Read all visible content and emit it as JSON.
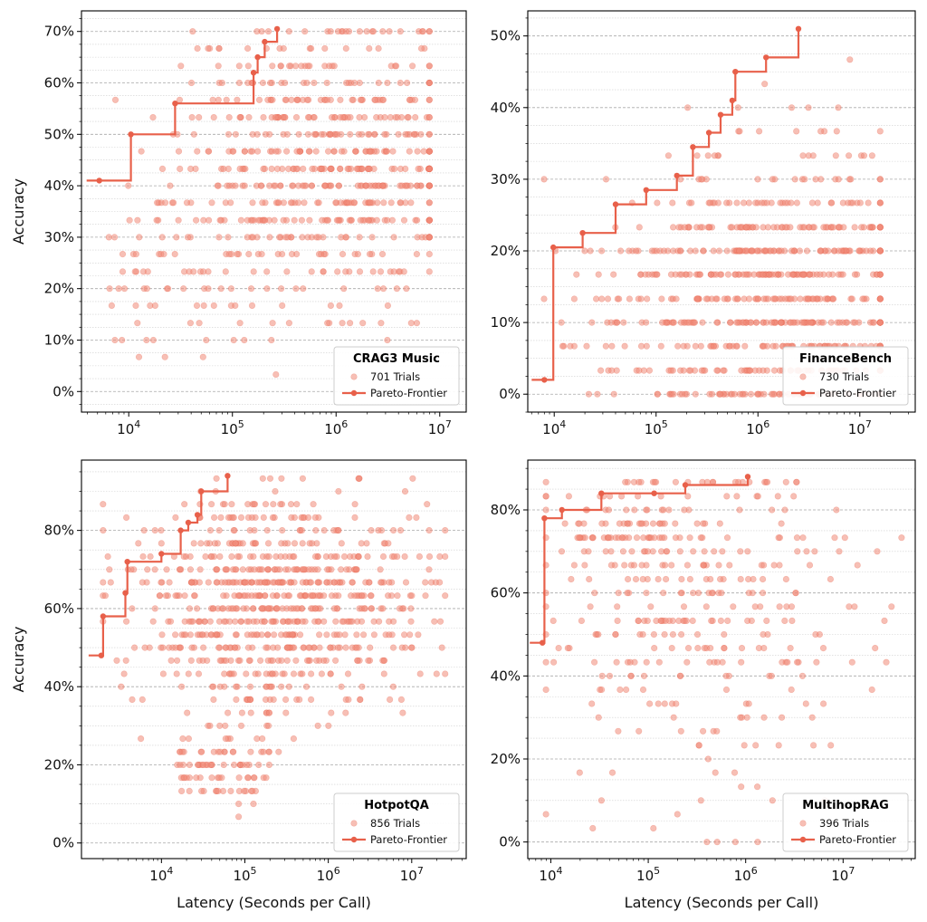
{
  "figure": {
    "ylabel": "Accuracy",
    "xlabel": "Latency (Seconds per Call)"
  },
  "colors": {
    "scatter": "#f08b78",
    "frontier": "#e8604a",
    "grid": "#b8b8b8",
    "axis": "#000000"
  },
  "chart_data": [
    {
      "type": "scatter",
      "title": "CRAG3 Music",
      "trials_label": "701 Trials",
      "frontier_label": "Pareto-Frontier",
      "xscale": "log",
      "xlim": [
        3500.0,
        18000000.0
      ],
      "ylim": [
        -4,
        74
      ],
      "xticks": [
        {
          "v": 10000.0,
          "exp": "4"
        },
        {
          "v": 100000.0,
          "exp": "5"
        },
        {
          "v": 1000000.0,
          "exp": "6"
        },
        {
          "v": 10000000.0,
          "exp": "7"
        }
      ],
      "yticks": [
        0,
        10,
        20,
        30,
        40,
        50,
        60,
        70
      ],
      "xlabel": "",
      "ylabel": "Accuracy",
      "legend": "bottom-right",
      "trials": 701,
      "y_levels": [
        0,
        3.3,
        6.7,
        10,
        13.3,
        16.7,
        20,
        23.3,
        26.7,
        30,
        33.3,
        36.7,
        40,
        43.3,
        46.7,
        50,
        53.3,
        56.7,
        60,
        63.3,
        66.7,
        70
      ],
      "cloud": {
        "lx0": 3.8,
        "lx1": 6.9,
        "center": 5.9,
        "spread": 0.72,
        "weight_center": 45,
        "weight_spread": 14,
        "seed": 11
      },
      "sparse_low": {
        "lx0": 3.8,
        "lx1": 5.2,
        "ycenter": 20,
        "yspread": 9,
        "n": 60,
        "seed": 5
      },
      "frontier": [
        [
          5200,
          41
        ],
        [
          10500,
          50
        ],
        [
          28000,
          56
        ],
        [
          160000,
          62
        ],
        [
          175000,
          65
        ],
        [
          205000,
          68
        ],
        [
          270000,
          70.5
        ]
      ]
    },
    {
      "type": "scatter",
      "title": "FinanceBench",
      "trials_label": "730 Trials",
      "frontier_label": "Pareto-Frontier",
      "xscale": "log",
      "xlim": [
        5500.0,
        35000000.0
      ],
      "ylim": [
        -2.5,
        53.5
      ],
      "xticks": [
        {
          "v": 10000.0,
          "exp": "4"
        },
        {
          "v": 100000.0,
          "exp": "5"
        },
        {
          "v": 1000000.0,
          "exp": "6"
        },
        {
          "v": 10000000.0,
          "exp": "7"
        }
      ],
      "yticks": [
        0,
        10,
        20,
        30,
        40,
        50
      ],
      "xlabel": "",
      "ylabel": "",
      "legend": "bottom-right",
      "trials": 730,
      "y_levels": [
        0,
        3.3,
        6.7,
        10,
        13.3,
        16.7,
        20,
        23.3,
        26.7,
        30,
        33.3,
        36.7,
        40,
        43.3,
        46.7,
        50
      ],
      "cloud": {
        "lx0": 3.9,
        "lx1": 7.2,
        "center": 6.1,
        "spread": 0.75,
        "weight_center": 14,
        "weight_spread": 10,
        "seed": 23
      },
      "sparse_low": {
        "lx0": 4.0,
        "lx1": 5.5,
        "ycenter": 10,
        "yspread": 6,
        "n": 40,
        "seed": 9
      },
      "frontier": [
        [
          8000,
          2
        ],
        [
          9800,
          20.5
        ],
        [
          19000,
          22.5
        ],
        [
          40000,
          26.5
        ],
        [
          80000,
          28.5
        ],
        [
          160000,
          30.5
        ],
        [
          230000,
          34.5
        ],
        [
          330000,
          36.5
        ],
        [
          430000,
          39
        ],
        [
          560000,
          41
        ],
        [
          600000,
          45
        ],
        [
          1200000,
          47
        ],
        [
          2500000,
          51
        ]
      ]
    },
    {
      "type": "scatter",
      "title": "HotpotQA",
      "trials_label": "856 Trials",
      "frontier_label": "Pareto-Frontier",
      "xscale": "log",
      "xlim": [
        1100.0,
        45000000.0
      ],
      "ylim": [
        -4,
        98
      ],
      "xticks": [
        {
          "v": 10000.0,
          "exp": "4"
        },
        {
          "v": 100000.0,
          "exp": "5"
        },
        {
          "v": 1000000.0,
          "exp": "6"
        },
        {
          "v": 10000000.0,
          "exp": "7"
        }
      ],
      "yticks": [
        0,
        20,
        40,
        60,
        80
      ],
      "xlabel": "Latency (Seconds per Call)",
      "ylabel": "Accuracy",
      "legend": "bottom-right",
      "trials": 856,
      "y_levels": [
        0,
        3.3,
        6.7,
        10,
        13.3,
        16.7,
        20,
        23.3,
        26.7,
        30,
        33.3,
        36.7,
        40,
        43.3,
        46.7,
        50,
        53.3,
        56.7,
        60,
        63.3,
        66.7,
        70,
        73.3,
        76.7,
        80,
        83.3,
        86.7,
        90,
        93.3
      ],
      "cloud": {
        "lx0": 3.3,
        "lx1": 7.4,
        "center": 5.4,
        "spread": 0.85,
        "weight_center": 62,
        "weight_spread": 14,
        "seed": 37
      },
      "sparse_low": {
        "lx0": 4.2,
        "lx1": 5.3,
        "ycenter": 20,
        "yspread": 6,
        "n": 90,
        "seed": 17
      },
      "frontier": [
        [
          1900,
          48
        ],
        [
          2000,
          58
        ],
        [
          3700,
          64
        ],
        [
          3900,
          72
        ],
        [
          10000,
          74
        ],
        [
          17000,
          80
        ],
        [
          21000,
          82
        ],
        [
          27000,
          84
        ],
        [
          30000,
          90
        ],
        [
          62000,
          94
        ]
      ]
    },
    {
      "type": "scatter",
      "title": "MultihopRAG",
      "trials_label": "396 Trials",
      "frontier_label": "Pareto-Frontier",
      "xscale": "log",
      "xlim": [
        5800.0,
        55000000.0
      ],
      "ylim": [
        -4,
        92
      ],
      "xticks": [
        {
          "v": 10000.0,
          "exp": "4"
        },
        {
          "v": 100000.0,
          "exp": "5"
        },
        {
          "v": 1000000.0,
          "exp": "6"
        },
        {
          "v": 10000000.0,
          "exp": "7"
        }
      ],
      "yticks": [
        0,
        20,
        40,
        60,
        80
      ],
      "xlabel": "Latency (Seconds per Call)",
      "ylabel": "",
      "legend": "bottom-right",
      "trials": 396,
      "y_levels": [
        0,
        3.3,
        6.7,
        10,
        13.3,
        16.7,
        20,
        23.3,
        26.7,
        30,
        33.3,
        36.7,
        40,
        43.3,
        46.7,
        50,
        53.3,
        56.7,
        60,
        63.3,
        66.7,
        70,
        73.3,
        76.7,
        80,
        83.3,
        86.7
      ],
      "cloud": {
        "lx0": 3.95,
        "lx1": 7.6,
        "center": 5.6,
        "spread": 0.9,
        "weight_center": 55,
        "weight_spread": 22,
        "seed": 53
      },
      "sparse_low": {
        "lx0": 4.1,
        "lx1": 5.2,
        "ycenter": 76,
        "yspread": 4,
        "n": 60,
        "seed": 29
      },
      "frontier": [
        [
          8200,
          48
        ],
        [
          8600,
          78
        ],
        [
          13000,
          80
        ],
        [
          33000,
          84
        ],
        [
          115000,
          84
        ],
        [
          240000,
          86
        ],
        [
          1050000,
          88
        ]
      ]
    }
  ]
}
